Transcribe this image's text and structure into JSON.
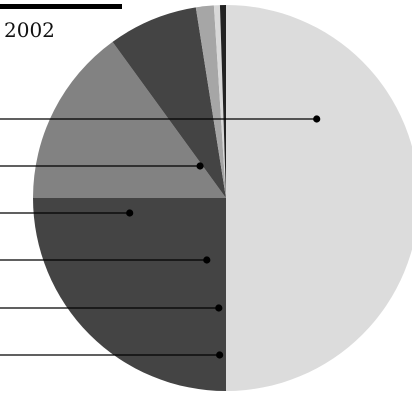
{
  "chart_data": {
    "type": "pie",
    "title": "2002",
    "values": [
      50,
      25,
      15,
      7.5,
      1.5,
      0.5,
      0.5
    ],
    "colors": [
      "#dcdcdc",
      "#444444",
      "#828282",
      "#444444",
      "#a6a6a6",
      "#d8d8d8",
      "#222222"
    ],
    "start_angle_deg": 0,
    "direction": "clockwise",
    "legend": "none",
    "leader_lines": true
  }
}
